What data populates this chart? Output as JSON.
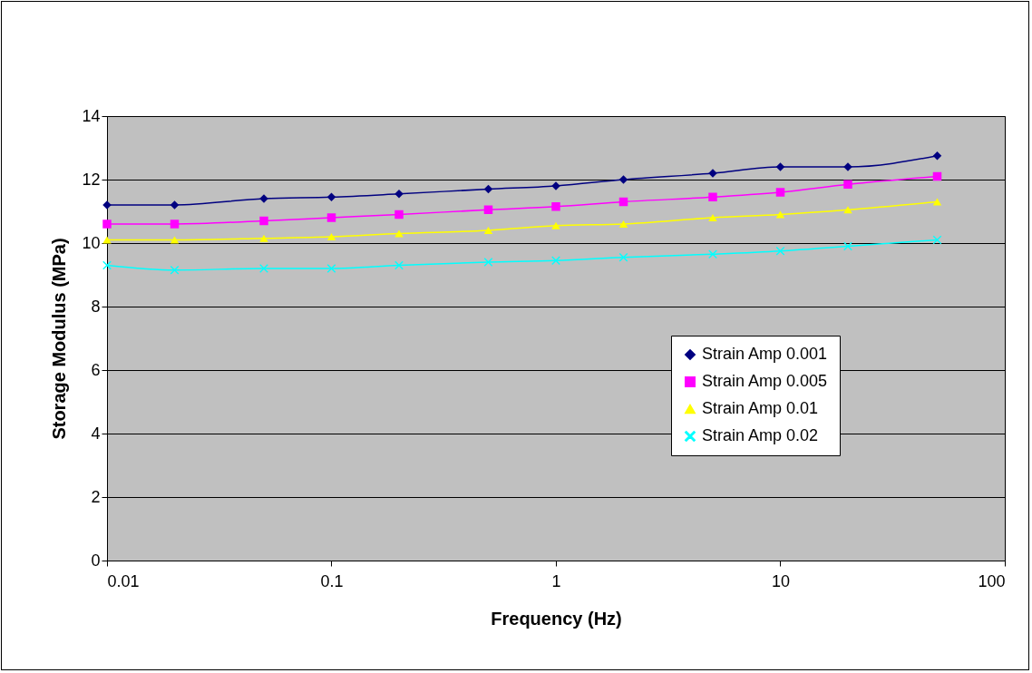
{
  "chart_data": {
    "type": "line",
    "xlabel": "Frequency (Hz)",
    "ylabel": "Storage Modulus (MPa)",
    "x": [
      0.01,
      0.02,
      0.05,
      0.1,
      0.2,
      0.5,
      1,
      2,
      5,
      10,
      20,
      50
    ],
    "log": "x",
    "xlim": [
      0.01,
      100
    ],
    "xticks": [
      0.01,
      0.1,
      1,
      10,
      100
    ],
    "ylim": [
      0,
      14
    ],
    "yticks": [
      0,
      2,
      4,
      6,
      8,
      10,
      12,
      14
    ],
    "grid": "y",
    "legend": "right",
    "series": [
      {
        "name": "Strain Amp 0.001",
        "color": "#000080",
        "marker": "diamond",
        "values": [
          11.2,
          11.2,
          11.4,
          11.45,
          11.55,
          11.7,
          11.8,
          12.0,
          12.2,
          12.4,
          12.4,
          12.75
        ]
      },
      {
        "name": "Strain Amp 0.005",
        "color": "#ff00ff",
        "marker": "square",
        "values": [
          10.6,
          10.6,
          10.7,
          10.8,
          10.9,
          11.05,
          11.15,
          11.3,
          11.45,
          11.6,
          11.85,
          12.1
        ]
      },
      {
        "name": "Strain Amp 0.01",
        "color": "#ffff00",
        "marker": "triangle",
        "values": [
          10.1,
          10.1,
          10.15,
          10.2,
          10.3,
          10.4,
          10.55,
          10.6,
          10.8,
          10.9,
          11.05,
          11.3
        ]
      },
      {
        "name": "Strain Amp 0.02",
        "color": "#00ffff",
        "marker": "cross",
        "values": [
          9.3,
          9.15,
          9.2,
          9.2,
          9.3,
          9.4,
          9.45,
          9.55,
          9.65,
          9.75,
          9.9,
          10.1
        ]
      }
    ]
  }
}
